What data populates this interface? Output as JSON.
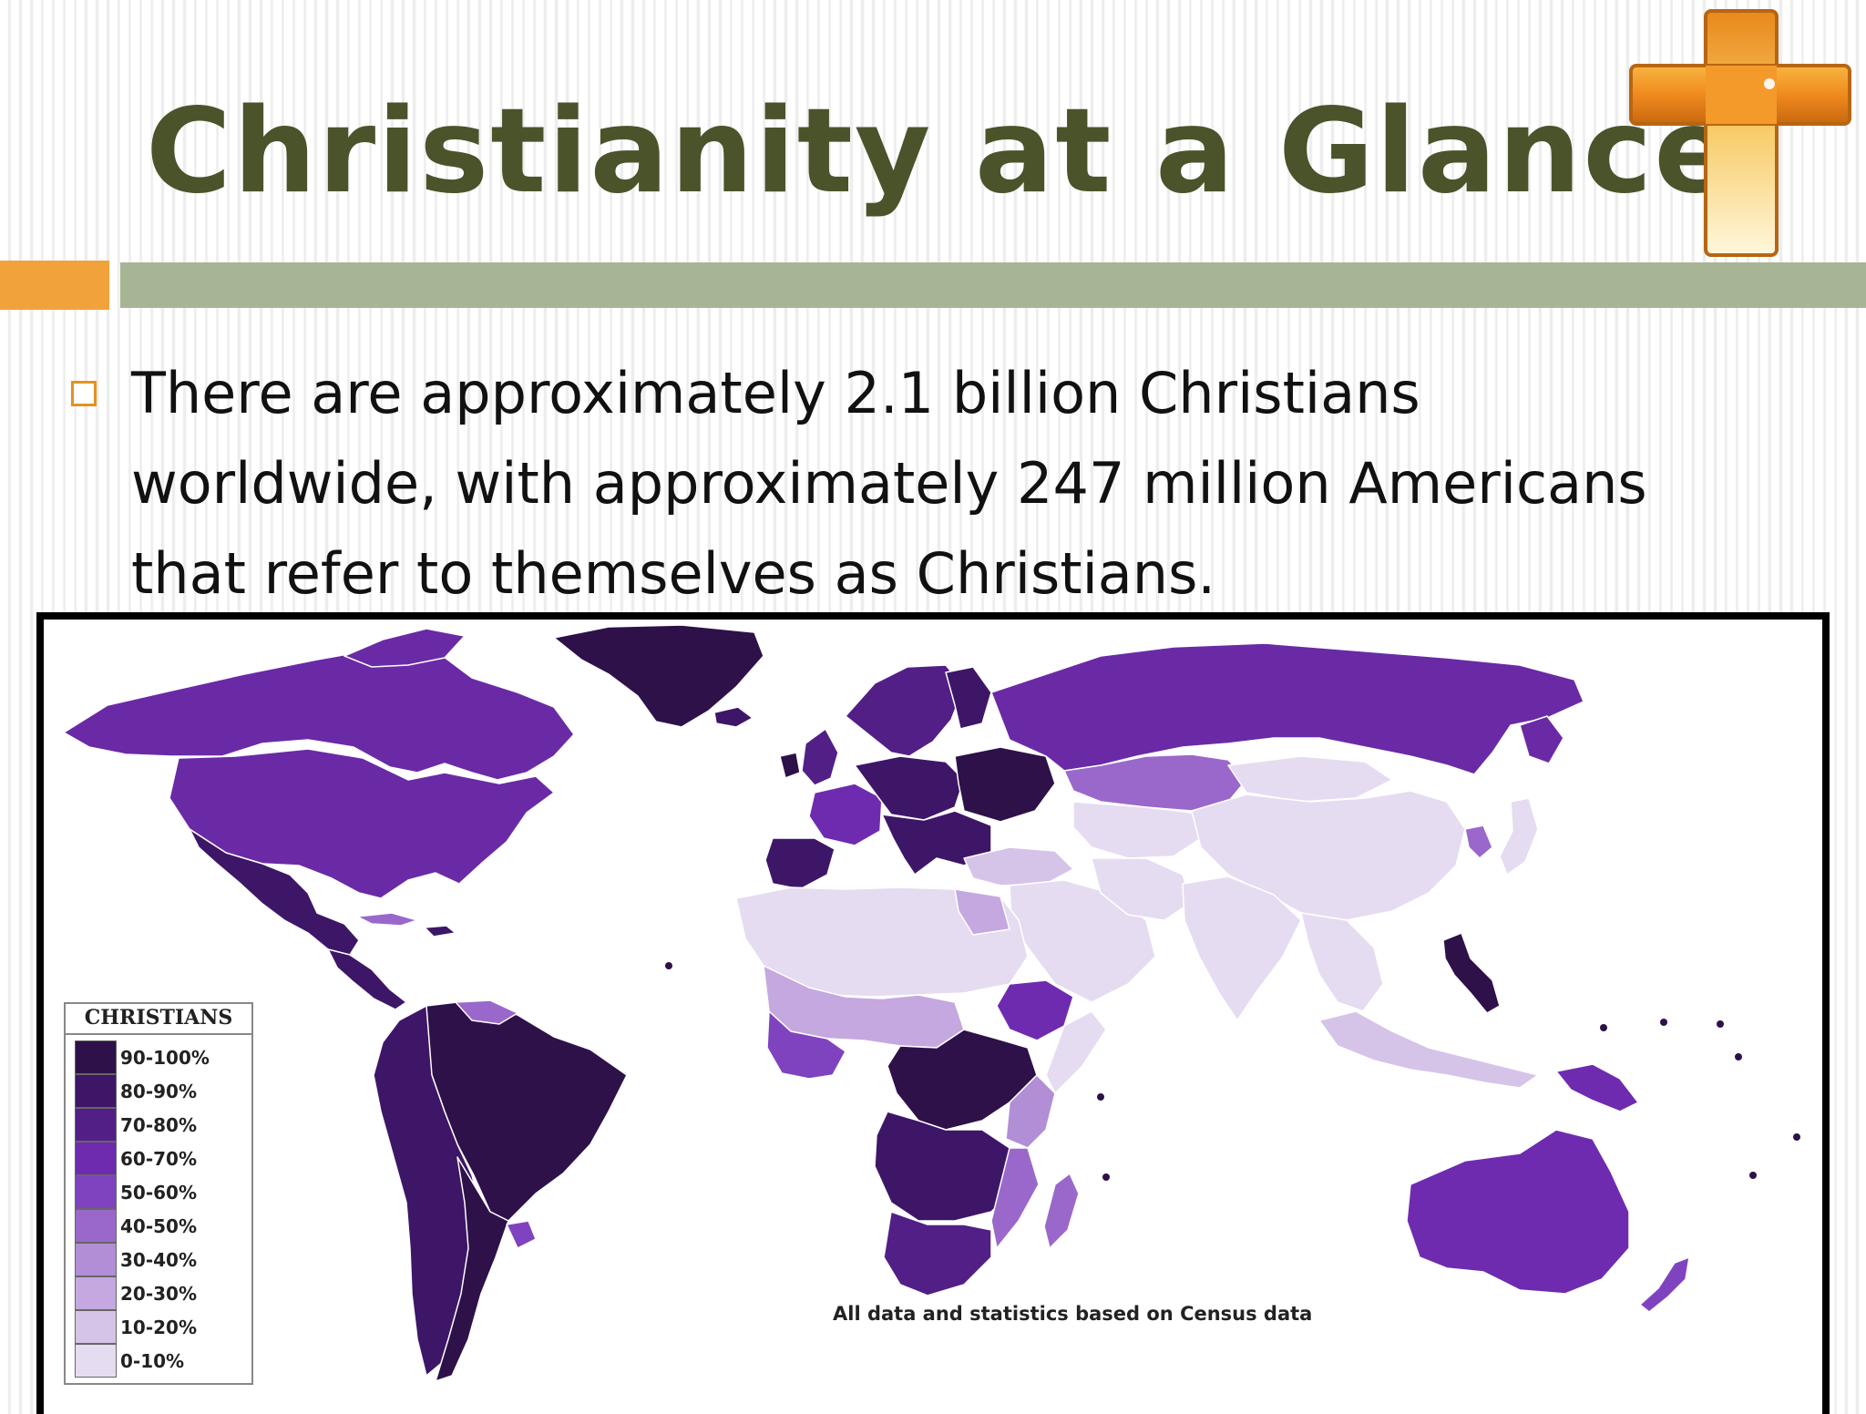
{
  "slide": {
    "title": "Christianity at a Glance",
    "bullet_lines": [
      "There are approximately 2.1 billion Christians",
      "worldwide, with approximately 247 million Americans",
      "that refer to themselves as Christians."
    ],
    "colors": {
      "title": "#4b532b",
      "accent_orange": "#f2a23a",
      "accent_green": "#a7b595",
      "bullet": "#e39220"
    }
  },
  "map": {
    "legend_title": "CHRISTIANS",
    "legend": [
      {
        "label": "90-100%",
        "color": "#2e1149"
      },
      {
        "label": "80-90%",
        "color": "#3e1668"
      },
      {
        "label": "70-80%",
        "color": "#521f86"
      },
      {
        "label": "60-70%",
        "color": "#6e2bb0"
      },
      {
        "label": "50-60%",
        "color": "#8043bf"
      },
      {
        "label": "40-50%",
        "color": "#9a68ca"
      },
      {
        "label": "30-40%",
        "color": "#b18ed5"
      },
      {
        "label": "20-30%",
        "color": "#c4a8df"
      },
      {
        "label": "10-20%",
        "color": "#d5c3e8"
      },
      {
        "label": "0-10%",
        "color": "#e6dcf1"
      }
    ],
    "footnote": "All data and statistics based on Census data"
  }
}
